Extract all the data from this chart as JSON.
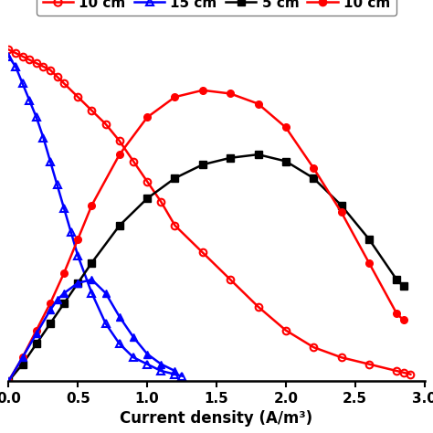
{
  "pol_10cm_x": [
    0.0,
    0.05,
    0.1,
    0.15,
    0.2,
    0.25,
    0.3,
    0.35,
    0.4,
    0.5,
    0.6,
    0.7,
    0.8,
    0.9,
    1.0,
    1.1,
    1.2,
    1.4,
    1.6,
    1.8,
    2.0,
    2.2,
    2.4,
    2.6,
    2.8,
    2.85,
    2.9
  ],
  "pol_10cm_y": [
    0.98,
    0.97,
    0.96,
    0.95,
    0.94,
    0.93,
    0.92,
    0.9,
    0.88,
    0.84,
    0.8,
    0.76,
    0.71,
    0.65,
    0.59,
    0.53,
    0.46,
    0.38,
    0.3,
    0.22,
    0.15,
    0.1,
    0.07,
    0.05,
    0.03,
    0.025,
    0.02
  ],
  "pol_15cm_x": [
    0.0,
    0.05,
    0.1,
    0.15,
    0.2,
    0.25,
    0.3,
    0.35,
    0.4,
    0.45,
    0.5,
    0.6,
    0.7,
    0.8,
    0.9,
    1.0,
    1.1,
    1.2,
    1.25
  ],
  "pol_15cm_y": [
    0.96,
    0.93,
    0.88,
    0.83,
    0.78,
    0.72,
    0.65,
    0.58,
    0.51,
    0.44,
    0.37,
    0.26,
    0.17,
    0.11,
    0.07,
    0.05,
    0.03,
    0.02,
    0.015
  ],
  "pd_5cm_x": [
    0.0,
    0.1,
    0.2,
    0.3,
    0.4,
    0.5,
    0.6,
    0.8,
    1.0,
    1.2,
    1.4,
    1.6,
    1.8,
    2.0,
    2.2,
    2.4,
    2.6,
    2.8,
    2.85
  ],
  "pd_5cm_y": [
    0.0,
    0.05,
    0.11,
    0.17,
    0.23,
    0.29,
    0.35,
    0.46,
    0.54,
    0.6,
    0.64,
    0.66,
    0.67,
    0.65,
    0.6,
    0.52,
    0.42,
    0.3,
    0.28
  ],
  "pd_10cm_x": [
    0.0,
    0.1,
    0.2,
    0.3,
    0.4,
    0.5,
    0.6,
    0.8,
    1.0,
    1.2,
    1.4,
    1.6,
    1.8,
    2.0,
    2.2,
    2.4,
    2.6,
    2.8,
    2.85
  ],
  "pd_10cm_y": [
    0.0,
    0.07,
    0.15,
    0.23,
    0.32,
    0.42,
    0.52,
    0.67,
    0.78,
    0.84,
    0.86,
    0.85,
    0.82,
    0.75,
    0.63,
    0.5,
    0.35,
    0.2,
    0.18
  ],
  "pd_15cm_x": [
    0.0,
    0.1,
    0.2,
    0.3,
    0.35,
    0.4,
    0.5,
    0.6,
    0.7,
    0.8,
    0.9,
    1.0,
    1.1,
    1.2
  ],
  "pd_15cm_y": [
    0.0,
    0.07,
    0.14,
    0.21,
    0.24,
    0.26,
    0.29,
    0.3,
    0.26,
    0.19,
    0.13,
    0.08,
    0.05,
    0.03
  ],
  "xlabel": "Current density (A/m³)",
  "xlim": [
    0.0,
    3.0
  ],
  "ylim": [
    0.0,
    1.05
  ],
  "figsize": [
    4.74,
    4.74
  ],
  "dpi": 100
}
